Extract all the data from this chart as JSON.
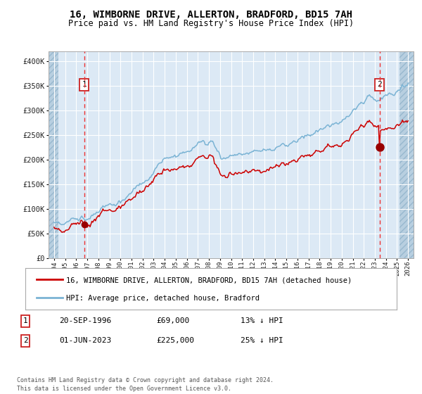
{
  "title": "16, WIMBORNE DRIVE, ALLERTON, BRADFORD, BD15 7AH",
  "subtitle": "Price paid vs. HM Land Registry's House Price Index (HPI)",
  "legend_line1": "16, WIMBORNE DRIVE, ALLERTON, BRADFORD, BD15 7AH (detached house)",
  "legend_line2": "HPI: Average price, detached house, Bradford",
  "footnote": "Contains HM Land Registry data © Crown copyright and database right 2024.\nThis data is licensed under the Open Government Licence v3.0.",
  "sale1_date": "20-SEP-1996",
  "sale1_price": "£69,000",
  "sale1_hpi": "13% ↓ HPI",
  "sale2_date": "01-JUN-2023",
  "sale2_price": "£225,000",
  "sale2_hpi": "25% ↓ HPI",
  "xlim": [
    1993.5,
    2026.5
  ],
  "ylim": [
    0,
    420000
  ],
  "yticks": [
    0,
    50000,
    100000,
    150000,
    200000,
    250000,
    300000,
    350000,
    400000
  ],
  "ytick_labels": [
    "£0",
    "£50K",
    "£100K",
    "£150K",
    "£200K",
    "£250K",
    "£300K",
    "£350K",
    "£400K"
  ],
  "hpi_color": "#7ab3d4",
  "price_color": "#cc0000",
  "marker_color": "#990000",
  "vline_color": "#ee3333",
  "bg_color": "#dce9f5",
  "hatch_color": "#b8cfe0",
  "grid_color": "#ffffff",
  "sale1_year": 1996.72,
  "sale2_year": 2023.42,
  "hatch_left_end": 1994.42,
  "hatch_right_start": 2025.25
}
